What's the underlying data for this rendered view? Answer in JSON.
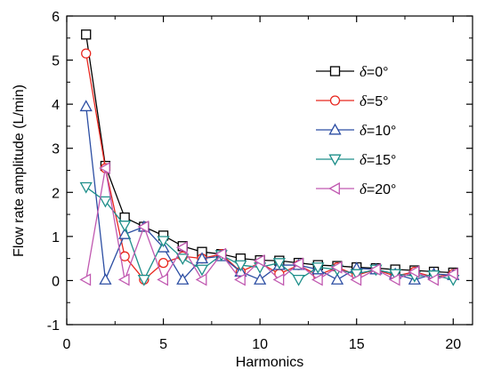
{
  "chart_data": {
    "type": "line",
    "title": "",
    "xlabel": "Harmonics",
    "ylabel": "Flow rate amplitude (L/min)",
    "xlim": [
      0,
      21
    ],
    "ylim": [
      -1,
      6
    ],
    "xticks": [
      0,
      5,
      10,
      15,
      20
    ],
    "yticks": [
      -1,
      0,
      1,
      2,
      3,
      4,
      5,
      6
    ],
    "grid": false,
    "legend_position": "top-right",
    "x": [
      1,
      2,
      3,
      4,
      5,
      6,
      7,
      8,
      9,
      10,
      11,
      12,
      13,
      14,
      15,
      16,
      17,
      18,
      19,
      20
    ],
    "series": [
      {
        "name_prefix": "δ",
        "name_suffix": "=0°",
        "color": "#000000",
        "marker": "square",
        "values": [
          5.58,
          2.6,
          1.43,
          1.22,
          1.02,
          0.78,
          0.65,
          0.6,
          0.5,
          0.46,
          0.45,
          0.4,
          0.35,
          0.33,
          0.3,
          0.28,
          0.25,
          0.23,
          0.2,
          0.18
        ]
      },
      {
        "name_prefix": "δ",
        "name_suffix": "=5°",
        "color": "#e8271f",
        "marker": "circle",
        "values": [
          5.15,
          2.55,
          0.55,
          0.02,
          0.4,
          0.55,
          0.5,
          0.6,
          0.2,
          0.4,
          0.15,
          0.35,
          0.12,
          0.3,
          0.12,
          0.25,
          0.1,
          0.2,
          0.08,
          0.15
        ]
      },
      {
        "name_prefix": "δ",
        "name_suffix": "=10°",
        "color": "#2c4ea3",
        "marker": "triangle-up",
        "values": [
          3.95,
          0.02,
          1.05,
          1.22,
          0.75,
          0.02,
          0.5,
          0.55,
          0.2,
          0.02,
          0.35,
          0.35,
          0.25,
          0.02,
          0.28,
          0.25,
          0.15,
          0.02,
          0.15,
          0.12
        ]
      },
      {
        "name_prefix": "δ",
        "name_suffix": "=15°",
        "color": "#1e8f8a",
        "marker": "triangle-down",
        "values": [
          2.12,
          1.8,
          1.25,
          0.02,
          0.9,
          0.5,
          0.25,
          0.58,
          0.35,
          0.3,
          0.4,
          0.02,
          0.3,
          0.25,
          0.15,
          0.25,
          0.15,
          0.1,
          0.12,
          0.02
        ]
      },
      {
        "name_prefix": "δ",
        "name_suffix": "=20°",
        "color": "#c058b0",
        "marker": "triangle-left",
        "values": [
          0.02,
          2.55,
          0.02,
          1.22,
          0.02,
          0.75,
          0.02,
          0.6,
          0.02,
          0.45,
          0.02,
          0.38,
          0.02,
          0.3,
          0.02,
          0.25,
          0.02,
          0.2,
          0.02,
          0.15
        ]
      }
    ]
  }
}
